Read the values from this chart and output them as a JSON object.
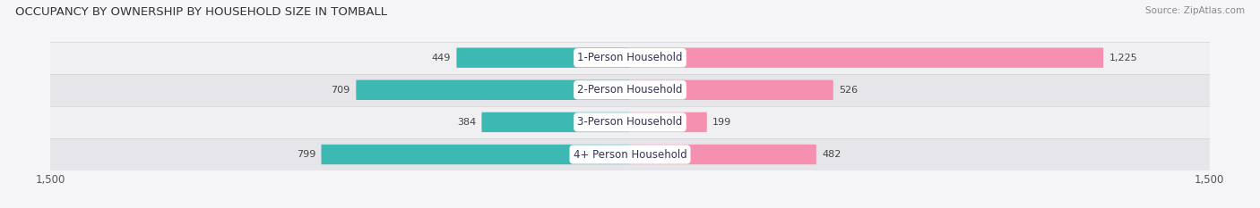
{
  "title": "OCCUPANCY BY OWNERSHIP BY HOUSEHOLD SIZE IN TOMBALL",
  "source": "Source: ZipAtlas.com",
  "categories": [
    "1-Person Household",
    "2-Person Household",
    "3-Person Household",
    "4+ Person Household"
  ],
  "owner_values": [
    449,
    709,
    384,
    799
  ],
  "renter_values": [
    1225,
    526,
    199,
    482
  ],
  "owner_color": "#3db8b2",
  "renter_color": "#f590b0",
  "axis_max": 1500,
  "row_bg_light": "#f0f0f2",
  "row_bg_dark": "#e6e6ea",
  "fig_bg": "#f5f5f7",
  "title_fontsize": 9.5,
  "source_fontsize": 7.5,
  "tick_fontsize": 8.5,
  "bar_label_fontsize": 8,
  "category_fontsize": 8.5,
  "legend_fontsize": 8.5,
  "bar_height": 0.62
}
